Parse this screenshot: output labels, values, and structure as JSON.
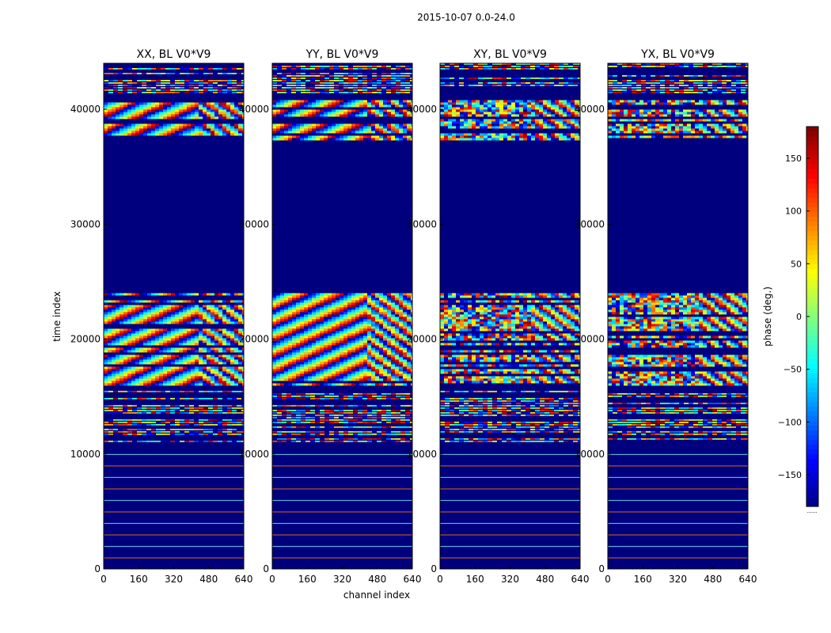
{
  "chart_data": {
    "type": "heatmap",
    "title": "2015-10-07 0.0-24.0",
    "xlabel": "channel index",
    "ylabel": "time index",
    "xlim": [
      0,
      640
    ],
    "ylim": [
      0,
      44000
    ],
    "xticks": [
      "0",
      "160",
      "320",
      "480",
      "640"
    ],
    "yticks": [
      "0",
      "10000",
      "20000",
      "30000",
      "40000"
    ],
    "panels": [
      {
        "title": "XX, BL V0*V9",
        "fringe": true
      },
      {
        "title": "YY, BL V0*V9",
        "fringe": true
      },
      {
        "title": "XY, BL V0*V9",
        "fringe": false
      },
      {
        "title": "YX, BL V0*V9",
        "fringe": false
      }
    ],
    "row_bands": [
      {
        "from": 0,
        "to": 11000,
        "kind": "sparse"
      },
      {
        "from": 11000,
        "to": 15500,
        "kind": "noisy_striped"
      },
      {
        "from": 15500,
        "to": 16000,
        "kind": "flat"
      },
      {
        "from": 16000,
        "to": 24000,
        "kind": "fringes"
      },
      {
        "from": 24000,
        "to": 37300,
        "kind": "flat"
      },
      {
        "from": 37300,
        "to": 40800,
        "kind": "fringes"
      },
      {
        "from": 40800,
        "to": 41500,
        "kind": "flat"
      },
      {
        "from": 41500,
        "to": 44000,
        "kind": "noisy_striped"
      }
    ],
    "colorbar": {
      "label": "phase (deg.)",
      "range": [
        -180,
        180
      ],
      "ticks": [
        "150",
        "100",
        "50",
        "0",
        "−50",
        "−100",
        "−150"
      ],
      "tick_values": [
        150,
        100,
        50,
        0,
        -50,
        -100,
        -150
      ],
      "colormap": "jet",
      "dots": "....."
    }
  }
}
